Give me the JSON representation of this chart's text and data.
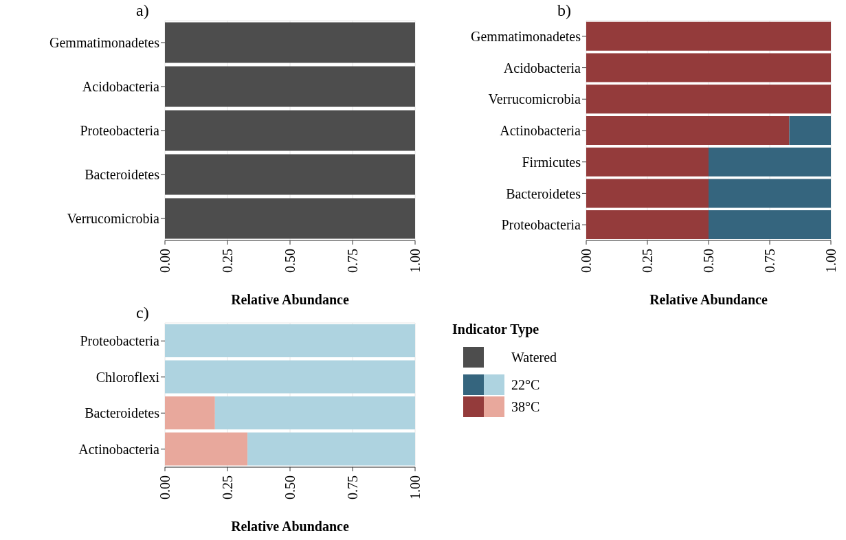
{
  "chart_data": [
    {
      "type": "bar",
      "title": "a)",
      "legend": "right",
      "orientation": "horizontal",
      "stacked": true,
      "xlabel": "Relative Abundance",
      "categories": [
        "Gemmatimonadetes",
        "Acidobacteria",
        "Proteobacteria",
        "Bacteroidetes",
        "Verrucomicrobia"
      ],
      "series": [
        {
          "name": "Watered",
          "color": "#4d4d4d",
          "values": [
            1,
            1,
            1,
            1,
            1
          ]
        }
      ],
      "xlim": [
        0,
        1
      ],
      "xticks": [
        {
          "value": 0,
          "label": "0.00"
        },
        {
          "value": 0.25,
          "label": "0.25"
        },
        {
          "value": 0.5,
          "label": "0.50"
        },
        {
          "value": 0.75,
          "label": "0.75"
        },
        {
          "value": 1,
          "label": "1.00"
        }
      ],
      "grid": true
    },
    {
      "type": "bar",
      "title": "b)",
      "legend": "bottom left",
      "orientation": "horizontal",
      "stacked": true,
      "xlabel": "Relative Abundance",
      "categories": [
        "Gemmatimonadetes",
        "Acidobacteria",
        "Verrucomicrobia",
        "Actinobacteria",
        "Firmicutes",
        "Bacteroidetes",
        "Proteobacteria"
      ],
      "series": [
        {
          "name": "38°C",
          "color": "#943b3b",
          "values": [
            1,
            1,
            1,
            0.83,
            0.5,
            0.5,
            0.5
          ]
        },
        {
          "name": "22°C",
          "color": "#35657e",
          "values": [
            0,
            0,
            0,
            0.17,
            0.5,
            0.5,
            0.5
          ]
        }
      ],
      "xlim": [
        0,
        1
      ],
      "xticks": [
        {
          "value": 0,
          "label": "0.00"
        },
        {
          "value": 0.25,
          "label": "0.25"
        },
        {
          "value": 0.5,
          "label": "0.50"
        },
        {
          "value": 0.75,
          "label": "0.75"
        },
        {
          "value": 1,
          "label": "1.00"
        }
      ],
      "grid": true
    },
    {
      "type": "bar",
      "title": "c)",
      "orientation": "horizontal",
      "stacked": true,
      "xlabel": "Relative Abundance",
      "legend": "right",
      "legend_title": "Indicator Type",
      "categories": [
        "Proteobacteria",
        "Chloroflexi",
        "Bacteroidetes",
        "Actinobacteria"
      ],
      "series": [
        {
          "color": "#e8a89c",
          "values": [
            0,
            0,
            0.2,
            0.33
          ]
        },
        {
          "color": "#aed3e0",
          "values": [
            1,
            1,
            0.8,
            0.67
          ]
        }
      ],
      "xlim": [
        0,
        1
      ],
      "xticks": [
        {
          "value": 0,
          "label": "0.00"
        },
        {
          "value": 0.25,
          "label": "0.25"
        },
        {
          "value": 0.5,
          "label": "0.50"
        },
        {
          "value": 0.75,
          "label": "0.75"
        },
        {
          "value": 1,
          "label": "1.00"
        }
      ],
      "grid": true
    }
  ]
}
